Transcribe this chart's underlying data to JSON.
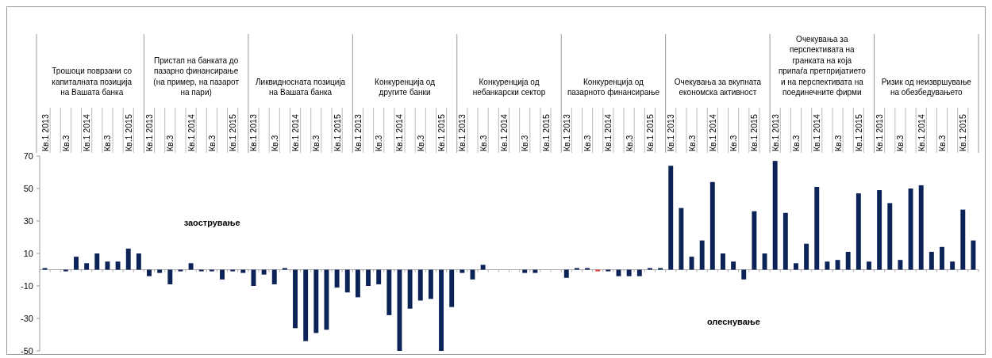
{
  "chart_data": {
    "type": "bar",
    "categories": [
      "Кв.1 2013",
      null,
      "Кв.3",
      null,
      "Кв.1 2014",
      null,
      "Кв.3",
      null,
      "Кв.1 2015",
      null,
      "Кв.1 2013",
      null,
      "Кв.3",
      null,
      "Кв.1 2014",
      null,
      "Кв.3",
      null,
      "Кв.1 2015",
      null,
      "Кв.1 2013",
      null,
      "Кв.3",
      null,
      "Кв.1 2014",
      null,
      "Кв.3",
      null,
      "Кв.1 2015",
      null,
      "Кв.1 2013",
      null,
      "Кв.3",
      null,
      "Кв.1 2014",
      null,
      "Кв.3",
      null,
      "Кв.1 2015",
      null,
      "Кв.1 2013",
      null,
      "Кв.3",
      null,
      "Кв.1 2014",
      null,
      "Кв.3",
      null,
      "Кв.1 2015",
      null,
      "Кв.1 2013",
      null,
      "Кв.3",
      null,
      "Кв.1 2014",
      null,
      "Кв.3",
      null,
      "Кв.1 2015",
      null,
      "Кв.1 2013",
      null,
      "Кв.3",
      null,
      "Кв.1 2014",
      null,
      "Кв.3",
      null,
      "Кв.1 2015",
      null,
      "Кв.1 2013",
      null,
      "Кв.3",
      null,
      "Кв.1 2014",
      null,
      "Кв.3",
      null,
      "Кв.1 2015",
      null,
      "Кв.1 2013",
      null,
      "Кв.3",
      null,
      "Кв.1 2014",
      null,
      "Кв.3",
      null,
      "Кв.1 2015",
      null
    ],
    "values": [
      1,
      0,
      -1,
      8,
      4,
      10,
      5,
      5,
      13,
      10,
      -4,
      -2,
      -9,
      -1,
      4,
      -1,
      -1,
      -6,
      -1,
      -2,
      -10,
      -3,
      -9,
      1,
      -36,
      -44,
      -39,
      -37,
      -11,
      -14,
      -17,
      -10,
      -9,
      -28,
      -50,
      -24,
      -19,
      -18,
      -50,
      -23,
      -2,
      -6,
      3,
      0,
      0,
      0,
      -2,
      -2,
      0,
      0,
      -5,
      1,
      1,
      -1,
      -1,
      -4,
      -4,
      -4,
      1,
      1,
      64,
      38,
      8,
      18,
      54,
      10,
      5,
      -6,
      36,
      10,
      67,
      35,
      4,
      16,
      51,
      5,
      6,
      11,
      47,
      5,
      49,
      41,
      6,
      50,
      52,
      11,
      14,
      5,
      37,
      18
    ],
    "colors": [
      "#0c2358",
      "#0c2358",
      "#0c2358",
      "#0c2358",
      "#0c2358",
      "#0c2358",
      "#0c2358",
      "#0c2358",
      "#0c2358",
      "#0c2358",
      "#0c2358",
      "#0c2358",
      "#0c2358",
      "#0c2358",
      "#0c2358",
      "#0c2358",
      "#0c2358",
      "#0c2358",
      "#0c2358",
      "#0c2358",
      "#0c2358",
      "#0c2358",
      "#0c2358",
      "#0c2358",
      "#0c2358",
      "#0c2358",
      "#0c2358",
      "#0c2358",
      "#0c2358",
      "#0c2358",
      "#0c2358",
      "#0c2358",
      "#0c2358",
      "#0c2358",
      "#0c2358",
      "#0c2358",
      "#0c2358",
      "#0c2358",
      "#0c2358",
      "#0c2358",
      "#0c2358",
      "#0c2358",
      "#0c2358",
      "#0c2358",
      "#0c2358",
      "#0c2358",
      "#0c2358",
      "#0c2358",
      "#0c2358",
      "#0c2358",
      "#0c2358",
      "#0c2358",
      "#0c2358",
      "#e03a3a",
      "#0c2358",
      "#0c2358",
      "#0c2358",
      "#0c2358",
      "#0c2358",
      "#0c2358",
      "#0c2358",
      "#0c2358",
      "#0c2358",
      "#0c2358",
      "#0c2358",
      "#0c2358",
      "#0c2358",
      "#0c2358",
      "#0c2358",
      "#0c2358",
      "#0c2358",
      "#0c2358",
      "#0c2358",
      "#0c2358",
      "#0c2358",
      "#0c2358",
      "#0c2358",
      "#0c2358",
      "#0c2358",
      "#0c2358",
      "#0c2358",
      "#0c2358",
      "#0c2358",
      "#0c2358",
      "#0c2358",
      "#0c2358",
      "#0c2358",
      "#0c2358",
      "#0c2358",
      "#0c2358"
    ],
    "ylim": [
      -50,
      70
    ],
    "yticks": [
      70,
      50,
      30,
      10,
      -10,
      -30,
      -50
    ],
    "grid": false,
    "annotations": [
      "Трошоци поврзани со капиталната позиција на Вашата банка",
      "Пристап на банката до пазарно финансирање (на пример, на пазарот на пари)",
      "Ликвидносната позиција на Вашата банка",
      "Конкуренција од другите банки",
      "Конкуренција од небанкарски сектор",
      "Конкуренција од пазарното финансирање",
      "Очекувања за вкупната економска активност",
      "Очекувања за перспективата на гранката на која припаѓа претпријатието и на перспективата на поединечните фирми",
      "Ризик од неизвршување на обезбедувањето",
      "заострување",
      "олеснување"
    ]
  }
}
